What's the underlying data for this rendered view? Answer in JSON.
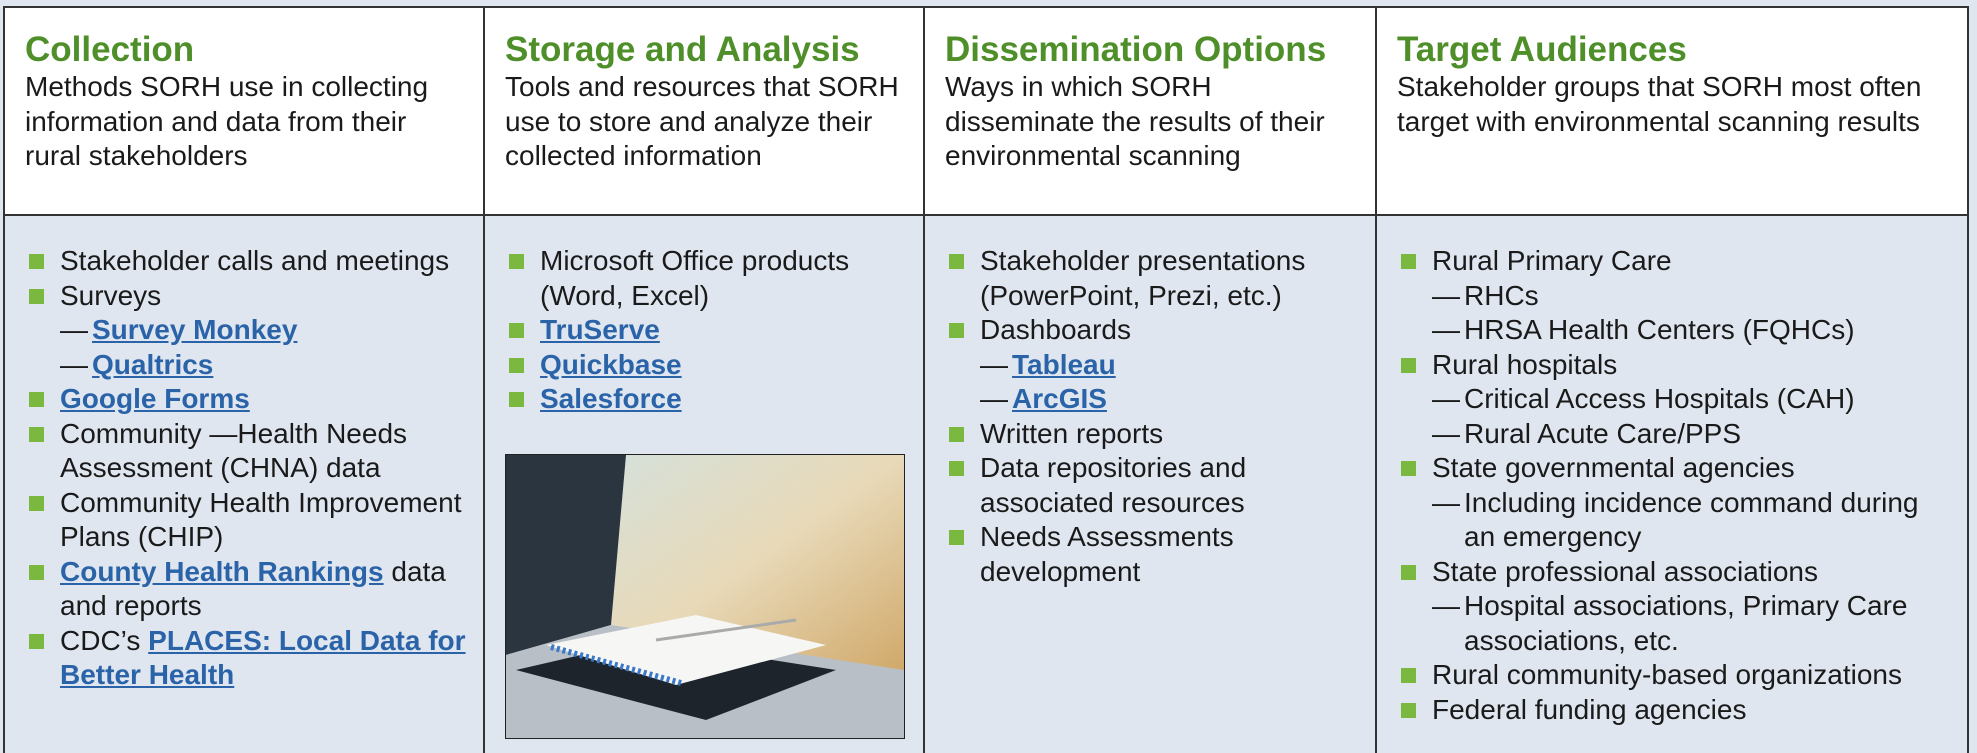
{
  "columns": [
    {
      "title": "Collection",
      "description": "Methods SORH use in collecting information and data from their rural stakeholders",
      "items": [
        {
          "text": "Stakeholder calls and meetings"
        },
        {
          "text": "Surveys",
          "sub": [
            {
              "link": "Survey Monkey"
            },
            {
              "link": "Qualtrics"
            }
          ]
        },
        {
          "link": "Google Forms"
        },
        {
          "text": "Community —Health Needs Assessment (CHNA) data"
        },
        {
          "text": "Community Health Improvement Plans (CHIP)"
        },
        {
          "link": "County Health Rankings",
          "suffix": "data and reports"
        },
        {
          "text": "CDC’s",
          "link": "PLACES: Local Data for Better Health"
        }
      ]
    },
    {
      "title": "Storage and Analysis",
      "description": "Tools and resources that SORH use to store and analyze their collected information",
      "items": [
        {
          "text": "Microsoft Office products (Word, Excel)"
        },
        {
          "link": "TruServe"
        },
        {
          "link": "Quickbase"
        },
        {
          "link": "Salesforce"
        }
      ]
    },
    {
      "title": "Dissemination Options",
      "description": "Ways in which SORH disseminate the results of their environmental scanning",
      "items": [
        {
          "text": "Stakeholder presentations (PowerPoint, Prezi, etc.)"
        },
        {
          "text": "Dashboards",
          "sub": [
            {
              "link": "Tableau"
            },
            {
              "link": "ArcGIS"
            }
          ]
        },
        {
          "text": "Written reports"
        },
        {
          "text": "Data repositories and associated resources"
        },
        {
          "text": "Needs Assessments development"
        }
      ]
    },
    {
      "title": "Target Audiences",
      "description": "Stakeholder groups that SORH most often target with environmental scanning results",
      "items": [
        {
          "text": "Rural Primary Care",
          "sub": [
            {
              "text": "RHCs"
            },
            {
              "text": "HRSA Health Centers (FQHCs)"
            }
          ]
        },
        {
          "text": "Rural hospitals",
          "sub": [
            {
              "text": "Critical Access Hospitals (CAH)"
            },
            {
              "text": "Rural Acute Care/PPS"
            }
          ]
        },
        {
          "text": "State governmental agencies",
          "sub": [
            {
              "text": "Including incidence command during an emergency"
            }
          ]
        },
        {
          "text": "State professional associations",
          "sub": [
            {
              "text": "Hospital associations, Primary Care associations, etc."
            }
          ]
        },
        {
          "text": "Rural community-based organizations"
        },
        {
          "text": "Federal funding agencies"
        }
      ]
    }
  ]
}
